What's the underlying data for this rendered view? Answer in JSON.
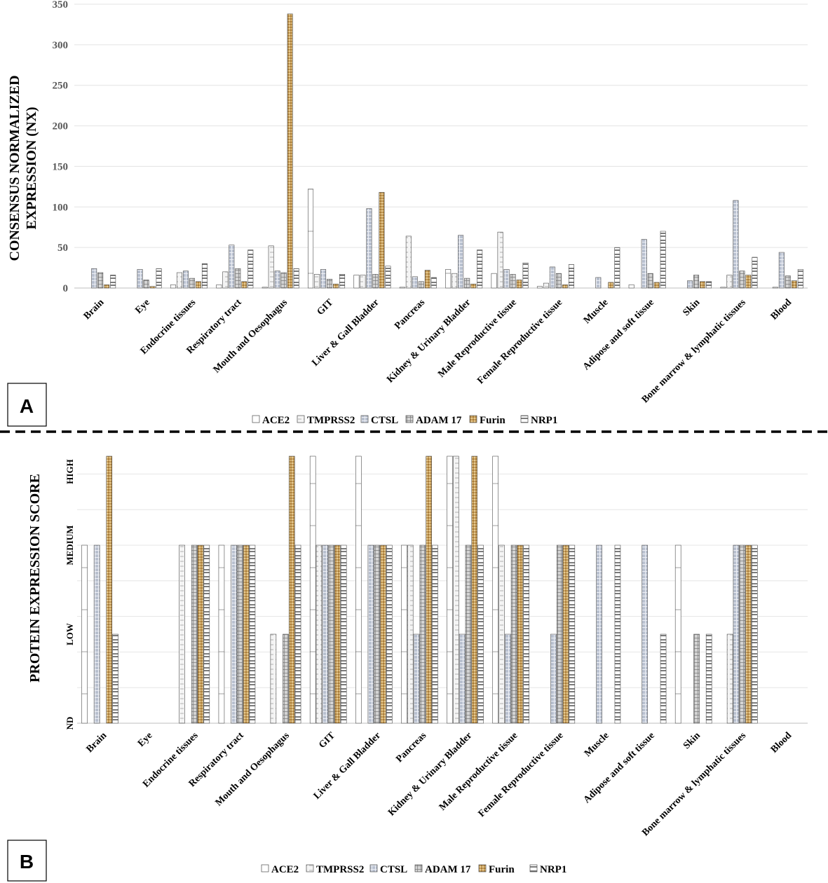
{
  "chart_data": [
    {
      "type": "bar",
      "panel_label": "A",
      "title": "",
      "xlabel": "",
      "ylabel_lines": [
        "CONSENSUS NORMALIZED",
        "EXPRESSION (NX)"
      ],
      "ylim": [
        0,
        350
      ],
      "yticks": [
        "0",
        "50",
        "100",
        "150",
        "200",
        "250",
        "300",
        "350"
      ],
      "grid": true,
      "legend_position": "bottom",
      "categories": [
        "Brain",
        "Eye",
        "Endocrine tissues",
        "Respiratory tract",
        "Mouth and Oesophagus",
        "GIT",
        "Liver & Gall Bladder",
        "Pancreas",
        "Kidney & Urinary Bladder",
        "Male Reproductive tissue",
        "Female Reproductive tissue",
        "Muscle",
        "Adipose and soft tissue",
        "Skin",
        "Bone marrow & lymphatic tissues",
        "Blood"
      ],
      "series": [
        {
          "name": "ACE2",
          "values": [
            0,
            0,
            4,
            4,
            1,
            122,
            16,
            1,
            23,
            18,
            2,
            0,
            4,
            0,
            1,
            0
          ]
        },
        {
          "name": "TMPRSS2",
          "values": [
            0,
            0,
            19,
            20,
            52,
            17,
            16,
            64,
            18,
            69,
            6,
            0,
            0,
            0,
            16,
            1
          ]
        },
        {
          "name": "CTSL",
          "values": [
            24,
            23,
            21,
            53,
            21,
            23,
            98,
            14,
            65,
            23,
            26,
            13,
            60,
            9,
            108,
            44
          ]
        },
        {
          "name": "ADAM 17",
          "values": [
            19,
            10,
            12,
            24,
            19,
            11,
            17,
            8,
            12,
            17,
            18,
            0,
            18,
            16,
            21,
            15
          ]
        },
        {
          "name": "Furin",
          "values": [
            4,
            2,
            8,
            8,
            338,
            5,
            118,
            22,
            5,
            10,
            4,
            7,
            7,
            8,
            16,
            9
          ]
        },
        {
          "name": "NRP1",
          "values": [
            16,
            24,
            30,
            47,
            24,
            17,
            27,
            13,
            47,
            31,
            29,
            50,
            70,
            8,
            38,
            23
          ]
        }
      ]
    },
    {
      "type": "bar",
      "panel_label": "B",
      "title": "",
      "xlabel": "",
      "ylabel": "PROTEIN EXPRESSION SCORE",
      "score_scale": {
        "ND": 0,
        "LOW": 1,
        "MEDIUM": 2,
        "HIGH": 3
      },
      "ylim": [
        0,
        3
      ],
      "yticks": [
        "ND",
        "LOW",
        "MEDIUM",
        "HIGH"
      ],
      "grid": true,
      "legend_position": "bottom",
      "categories": [
        "Brain",
        "Eye",
        "Endocrine tissues",
        "Respiratory tract",
        "Mouth and Oesophagus",
        "GIT",
        "Liver & Gall Bladder",
        "Pancreas",
        "Kidney & Urinary Bladder",
        "Male Reproductive tissue",
        "Female Reproductive tissue",
        "Muscle",
        "Adipose and soft tissue",
        "Skin",
        "Bone marrow & lymphatic tissues",
        "Blood"
      ],
      "series": [
        {
          "name": "ACE2",
          "values": [
            2,
            0,
            0,
            2,
            0,
            3,
            3,
            2,
            3,
            3,
            0,
            0,
            0,
            2,
            0,
            0
          ]
        },
        {
          "name": "TMPRSS2",
          "values": [
            0,
            0,
            2,
            0,
            1,
            2,
            0,
            2,
            3,
            2,
            0,
            0,
            0,
            0,
            1,
            0
          ]
        },
        {
          "name": "CTSL",
          "values": [
            2,
            0,
            0,
            2,
            0,
            2,
            2,
            1,
            1,
            1,
            1,
            2,
            2,
            0,
            2,
            0
          ]
        },
        {
          "name": "ADAM 17",
          "values": [
            0,
            0,
            2,
            2,
            1,
            2,
            2,
            2,
            2,
            2,
            2,
            0,
            0,
            1,
            2,
            0
          ]
        },
        {
          "name": "Furin",
          "values": [
            3,
            0,
            2,
            2,
            3,
            2,
            2,
            3,
            3,
            2,
            2,
            0,
            0,
            0,
            2,
            0
          ]
        },
        {
          "name": "NRP1",
          "values": [
            1,
            0,
            2,
            2,
            2,
            2,
            2,
            2,
            2,
            2,
            2,
            2,
            1,
            1,
            2,
            0
          ]
        }
      ]
    }
  ],
  "legend": [
    {
      "name": "ACE2",
      "color": "#ffffff",
      "pattern": "plain"
    },
    {
      "name": "TMPRSS2",
      "color": "#e7e7e7",
      "pattern": "dashes"
    },
    {
      "name": "CTSL",
      "color": "#bfc6d2",
      "pattern": "grid-blue"
    },
    {
      "name": "ADAM 17",
      "color": "#d9d9d9",
      "pattern": "grid-gray"
    },
    {
      "name": "Furin",
      "color": "#c9a66b",
      "pattern": "gold"
    },
    {
      "name": "NRP1",
      "color": "#ffffff",
      "pattern": "dark-bands"
    }
  ]
}
